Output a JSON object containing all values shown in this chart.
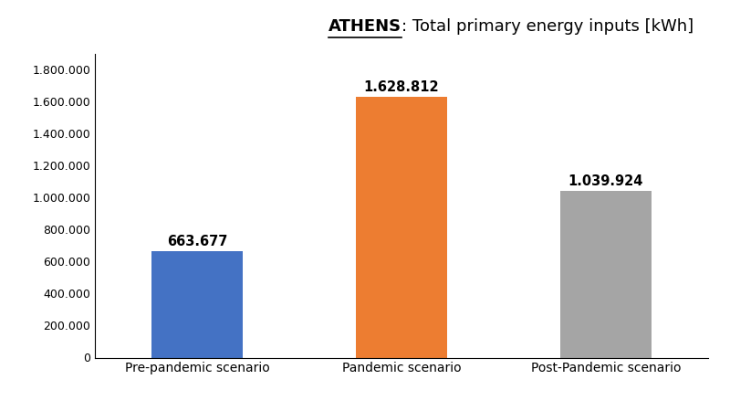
{
  "title_bold": "ATHENS",
  "title_rest": ": Total primary energy inputs [kWh]",
  "categories": [
    "Pre-pandemic scenario",
    "Pandemic scenario",
    "Post-Pandemic scenario"
  ],
  "values": [
    663677,
    1628812,
    1039924
  ],
  "bar_colors": [
    "#4472C4",
    "#ED7D31",
    "#A5A5A5"
  ],
  "value_labels": [
    "663.677",
    "1.628.812",
    "1.039.924"
  ],
  "ylim": [
    0,
    1900000
  ],
  "yticks": [
    0,
    200000,
    400000,
    600000,
    800000,
    1000000,
    1200000,
    1400000,
    1600000,
    1800000
  ],
  "ytick_labels": [
    "0",
    "200.000",
    "400.000",
    "600.000",
    "800.000",
    "1.000.000",
    "1.200.000",
    "1.400.000",
    "1.600.000",
    "1.800.000"
  ],
  "background_color": "#FFFFFF",
  "bar_width": 0.45,
  "label_fontsize": 10.5,
  "tick_fontsize": 9,
  "title_fontsize": 13
}
